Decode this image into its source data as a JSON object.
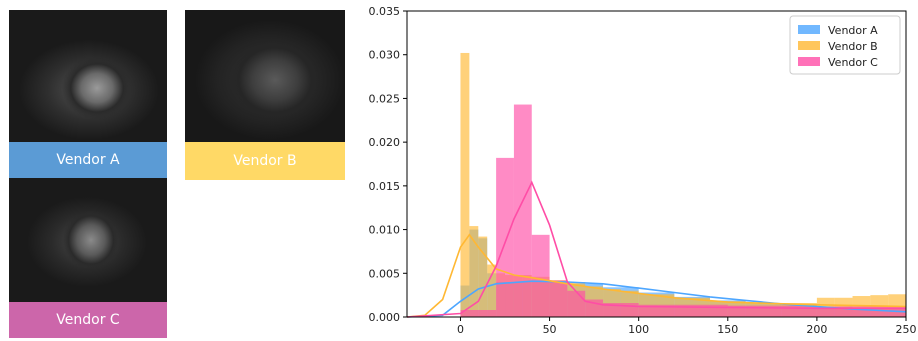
{
  "panels": [
    {
      "caption": "Vendor A",
      "color": "#5b9bd5",
      "tone": "bright"
    },
    {
      "caption": "Vendor B",
      "color": "#ffd966",
      "tone": "dark"
    },
    {
      "caption": "Vendor C",
      "color": "#cc66aa",
      "tone": "bright"
    }
  ],
  "chart_data": {
    "type": "bar",
    "title": "",
    "xlabel": "",
    "ylabel": "",
    "xlim": [
      -30,
      250
    ],
    "ylim": [
      0,
      0.035
    ],
    "x_ticks": [
      0,
      50,
      100,
      150,
      200,
      250
    ],
    "y_ticks": [
      0.0,
      0.005,
      0.01,
      0.015,
      0.02,
      0.025,
      0.03,
      0.035
    ],
    "y_tick_labels": [
      "0.000",
      "0.005",
      "0.010",
      "0.015",
      "0.020",
      "0.025",
      "0.030",
      "0.035"
    ],
    "legend_position": "top-right",
    "series": [
      {
        "name": "Vendor A",
        "color": "#4da6ff",
        "bar_edges": [
          0,
          5,
          10,
          15,
          20,
          30,
          40,
          50,
          60,
          80,
          100,
          120,
          140,
          160,
          180,
          200,
          220,
          250
        ],
        "bar_values": [
          0.0036,
          0.01,
          0.009,
          0.005,
          0.004,
          0.004,
          0.004,
          0.004,
          0.0038,
          0.0034,
          0.0028,
          0.0023,
          0.0019,
          0.0016,
          0.0014,
          0.0012,
          0.001
        ],
        "kde_x": [
          -30,
          -10,
          0,
          10,
          20,
          40,
          60,
          80,
          100,
          120,
          140,
          160,
          180,
          200,
          220,
          250
        ],
        "kde_y": [
          0.0,
          0.0002,
          0.0018,
          0.0032,
          0.0038,
          0.0041,
          0.004,
          0.0038,
          0.0033,
          0.0028,
          0.0023,
          0.0019,
          0.0015,
          0.0012,
          0.0009,
          0.0006
        ]
      },
      {
        "name": "Vendor B",
        "color": "#ffb833",
        "bar_edges": [
          0,
          5,
          10,
          15,
          20,
          25,
          30,
          35,
          40,
          50,
          60,
          70,
          80,
          90,
          100,
          120,
          140,
          160,
          180,
          200,
          210,
          220,
          230,
          240,
          250
        ],
        "bar_values": [
          0.0302,
          0.0104,
          0.0092,
          0.006,
          0.005,
          0.0048,
          0.0048,
          0.0048,
          0.0046,
          0.0042,
          0.004,
          0.0035,
          0.0032,
          0.003,
          0.0026,
          0.0022,
          0.0018,
          0.0016,
          0.0016,
          0.0022,
          0.0022,
          0.0024,
          0.0025,
          0.0026
        ],
        "kde_x": [
          -30,
          -20,
          -10,
          0,
          5,
          10,
          20,
          30,
          40,
          60,
          80,
          100,
          120,
          150,
          200,
          250
        ],
        "kde_y": [
          0.0,
          0.0002,
          0.002,
          0.008,
          0.0094,
          0.008,
          0.0055,
          0.0048,
          0.0045,
          0.0038,
          0.0032,
          0.0027,
          0.0022,
          0.0017,
          0.0014,
          0.0012
        ]
      },
      {
        "name": "Vendor C",
        "color": "#ff4da6",
        "bar_edges": [
          0,
          20,
          30,
          40,
          50,
          60,
          70,
          80,
          100,
          150,
          200,
          250
        ],
        "bar_values": [
          0.0008,
          0.0182,
          0.0243,
          0.0094,
          0.0042,
          0.003,
          0.002,
          0.0016,
          0.0014,
          0.0013,
          0.0012
        ],
        "kde_x": [
          -30,
          0,
          10,
          20,
          30,
          40,
          50,
          60,
          70,
          80,
          90,
          100,
          150,
          200,
          250
        ],
        "kde_y": [
          0.0,
          0.0004,
          0.0018,
          0.0058,
          0.0112,
          0.0154,
          0.0105,
          0.004,
          0.0018,
          0.0014,
          0.0013,
          0.0012,
          0.0011,
          0.001,
          0.001
        ]
      }
    ]
  }
}
